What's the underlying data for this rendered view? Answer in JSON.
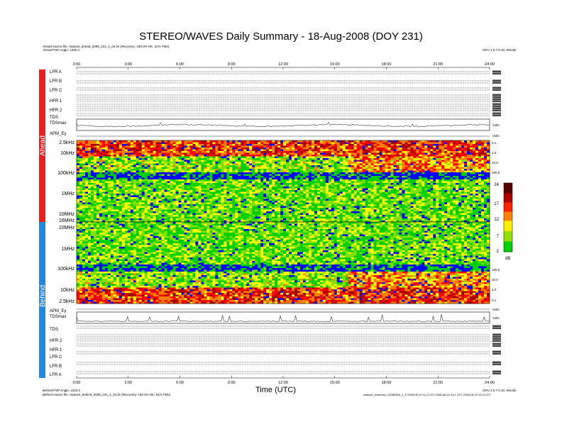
{
  "title": "STEREO/WAVES Daily Summary - 18-Aug-2008 (DOY 231)",
  "ahead_source": "Ahead source file: swaves_ahead_2008_231_1_04.lin (Recovery: 100.0% HK, 51% FMs)",
  "ahead_angle": "Ahead PSP Angle: ±333.3",
  "behind_angle": "Behind PSP Angle: ±333.3",
  "behind_source": "Behind source file: swaves_behind_2008_231_1_04.lin (Recovery: 100.0% HK, 51% FMs)",
  "right_top_note": "GPU 1.0.7.0.10, Woods",
  "right_bottom_note": "GPU 1.0.7.0.10, Woods",
  "footer_note": "swaves_summary_20080818_1_0 2008-08-19 11:2 UTC 2008-08-19 11:2 UTC 2008-08-19 11:2 UTC",
  "sidebar": {
    "ahead": "Ahead",
    "behind": "Behind"
  },
  "xaxis": {
    "ticks": [
      "0:00",
      "3:00",
      "6:00",
      "9:00",
      "12:00",
      "15:00",
      "18:00",
      "21:00",
      "24:00"
    ],
    "label": "Time (UTC)"
  },
  "ahead_rows": [
    "LFR A",
    "LFR B",
    "LFR C",
    "HFR 1",
    "HFR 2",
    "TDS",
    "TDSmax",
    "APM_Ey"
  ],
  "behind_rows": [
    "APM_Ey",
    "TDSmax",
    "TDS",
    "HFR 2",
    "HFR 1",
    "LFR C",
    "LFR B",
    "LFR A"
  ],
  "freq_labels_ahead": [
    "2.5kHz",
    "10kHz",
    "100kHz",
    "1MHz",
    "10MHz",
    "16MHz"
  ],
  "freq_labels_behind": [
    "10MHz",
    "1MHz",
    "100kHz",
    "10kHz",
    "2.5kHz"
  ],
  "right_scale_ahead": [
    "0.1",
    "1.0",
    "10.0",
    "100.0"
  ],
  "right_scale_behind": [
    "100.0",
    "10.0",
    "1.0",
    "0.1"
  ],
  "colorbar": {
    "ticks": [
      "24",
      "17",
      "12",
      "7",
      "2"
    ],
    "unit": "dB"
  },
  "tds_unit": "Volts",
  "apm_unit": "Volts",
  "chart_data": {
    "type": "heatmap",
    "title": "STEREO/WAVES Daily Summary - 18-Aug-2008 (DOY 231)",
    "xlabel": "Time (UTC)",
    "x_range_hours": [
      0,
      24
    ],
    "panels": [
      {
        "name": "Ahead",
        "freq_range": [
          "2.5kHz",
          "16MHz"
        ],
        "scale": "log"
      },
      {
        "name": "Behind",
        "freq_range": [
          "16MHz",
          "2.5kHz"
        ],
        "scale": "log"
      }
    ],
    "colorbar_db": [
      2,
      24
    ],
    "colors": [
      "#00d000",
      "#80e000",
      "#ffff00",
      "#ff8000",
      "#ff0000",
      "#a00000",
      "#0000ff"
    ]
  }
}
